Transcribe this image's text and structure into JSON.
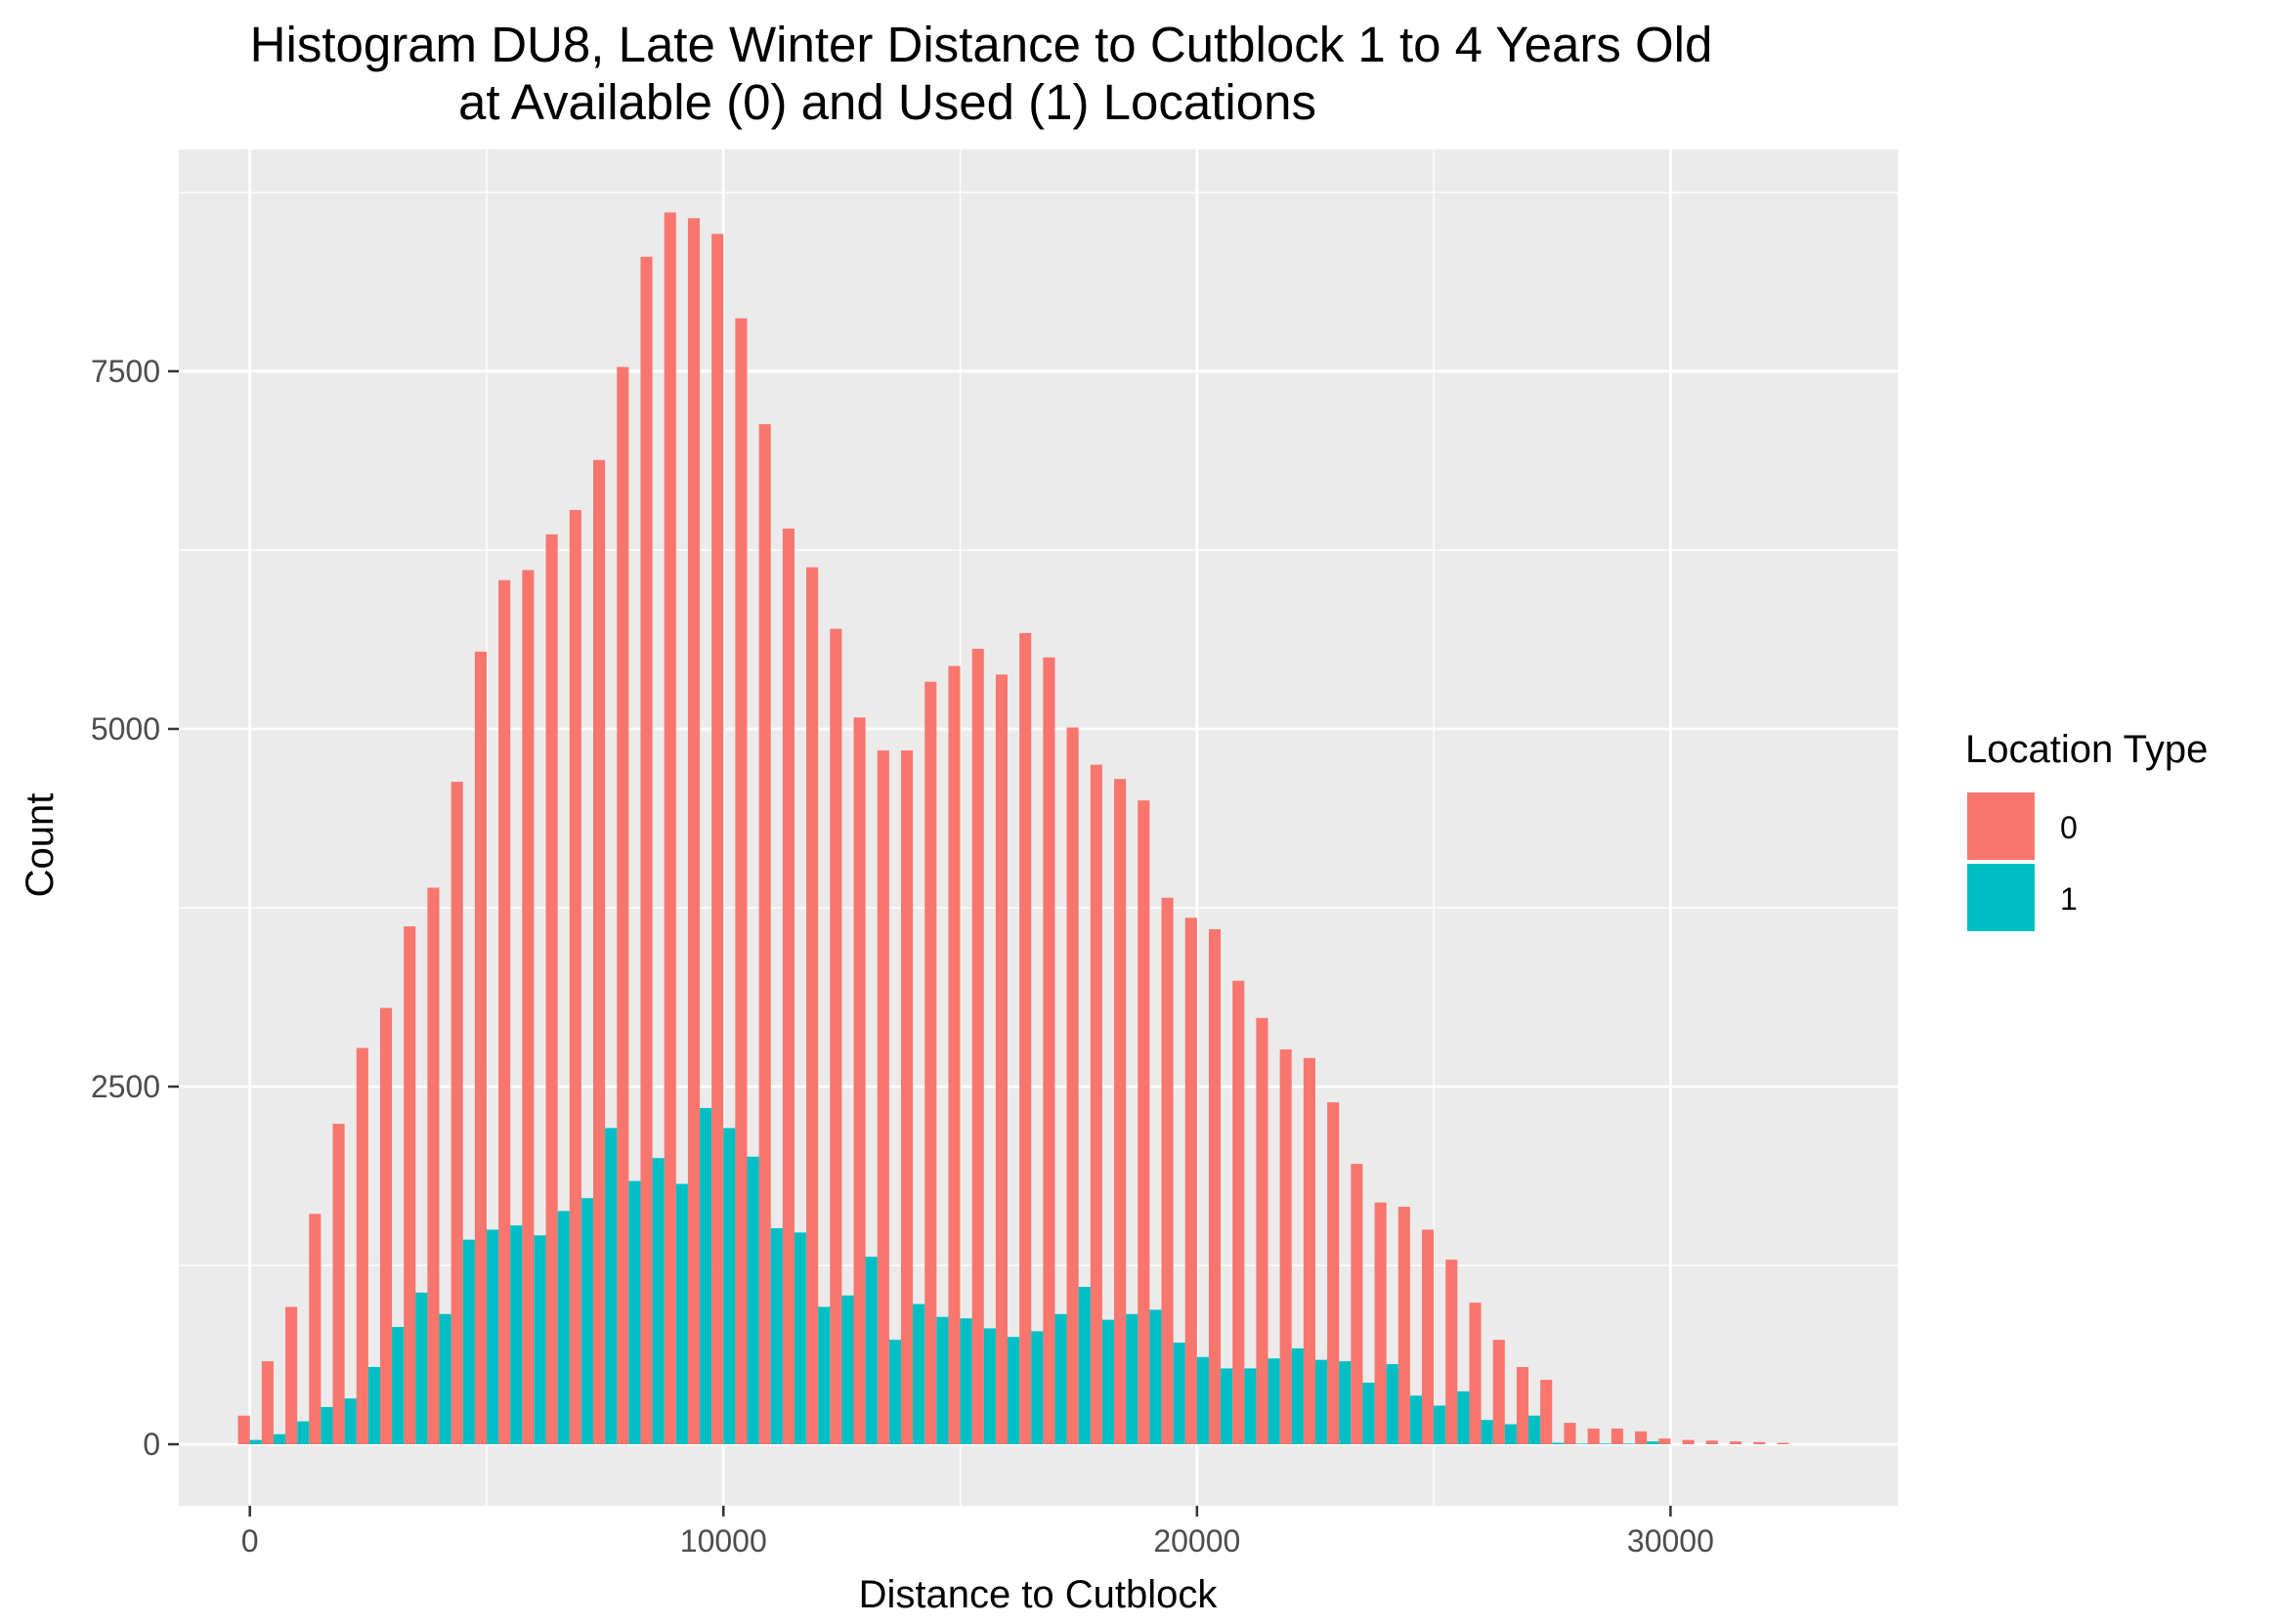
{
  "chart_data": {
    "type": "bar",
    "title_line1": "Histogram DU8, Late Winter Distance to Cutblock 1 to 4 Years Old",
    "title_line2": "at Available (0) and Used (1) Locations",
    "xlabel": "Distance to Cutblock",
    "ylabel": "Count",
    "xlim": [
      -1500,
      34800
    ],
    "ylim": [
      -430,
      9050
    ],
    "x_ticks": [
      0,
      10000,
      20000,
      30000
    ],
    "x_tick_labels": [
      "0",
      "10000",
      "20000",
      "30000"
    ],
    "y_ticks": [
      0,
      2500,
      5000,
      7500
    ],
    "y_tick_labels": [
      "0",
      "2500",
      "5000",
      "7500"
    ],
    "bin_start": 0,
    "bin_width": 500,
    "grid": true,
    "legend": {
      "title": "Location Type",
      "position": "right",
      "labels": [
        "0",
        "1"
      ]
    },
    "series": [
      {
        "name": "0",
        "color": "#F8766D",
        "values": [
          200,
          580,
          960,
          1610,
          2240,
          2770,
          3050,
          3620,
          3890,
          4630,
          5540,
          6040,
          6110,
          6360,
          6530,
          6880,
          7530,
          8300,
          8610,
          8570,
          8460,
          7870,
          7130,
          6400,
          6130,
          5700,
          5080,
          4850,
          4850,
          5330,
          5440,
          5560,
          5380,
          5670,
          5500,
          5010,
          4750,
          4650,
          4500,
          3820,
          3680,
          3600,
          3240,
          2980,
          2760,
          2700,
          2390,
          1960,
          1690,
          1660,
          1500,
          1290,
          990,
          730,
          540,
          450,
          150,
          110,
          110,
          90,
          40,
          30,
          25,
          20,
          15,
          10
        ]
      },
      {
        "name": "1",
        "color": "#00BFC4",
        "values": [
          30,
          70,
          160,
          260,
          320,
          540,
          820,
          1060,
          910,
          1430,
          1500,
          1530,
          1460,
          1630,
          1720,
          2210,
          1840,
          2000,
          1820,
          2350,
          2210,
          2010,
          1510,
          1480,
          960,
          1040,
          1310,
          730,
          980,
          890,
          880,
          810,
          750,
          790,
          910,
          1100,
          870,
          910,
          940,
          710,
          610,
          530,
          530,
          600,
          670,
          590,
          580,
          430,
          560,
          340,
          270,
          370,
          170,
          140,
          200,
          10,
          5,
          5,
          5,
          20,
          0,
          0,
          0,
          0,
          0,
          0
        ]
      }
    ]
  }
}
